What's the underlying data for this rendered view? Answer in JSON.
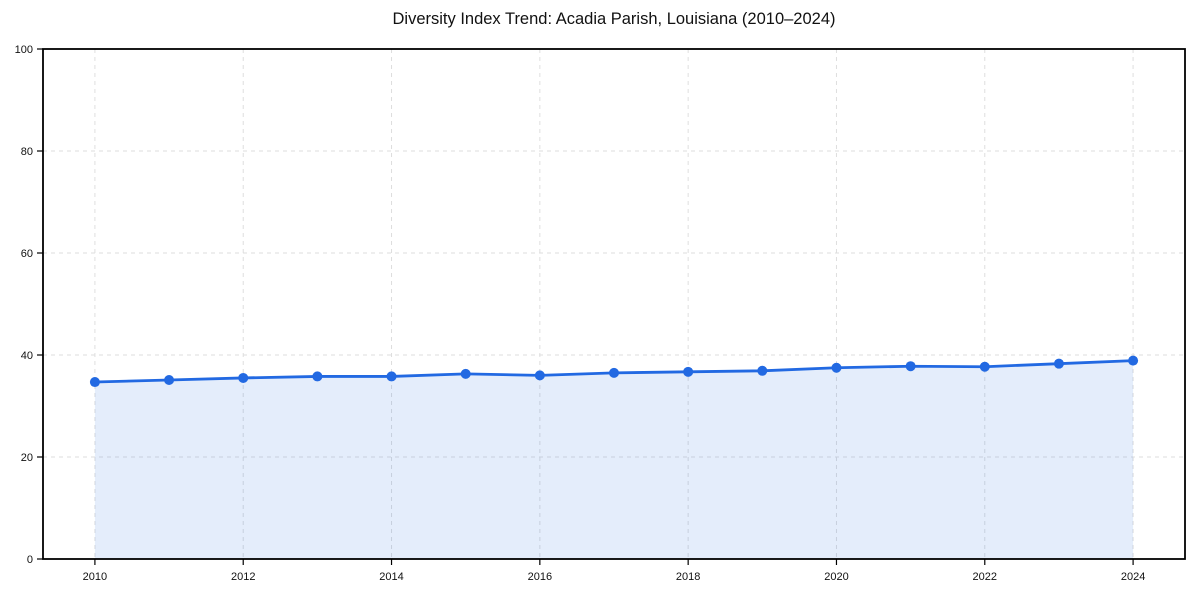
{
  "title": "Diversity Index Trend: Acadia Parish, Louisiana (2010–2024)",
  "chart_data": {
    "type": "line",
    "title": "Diversity Index Trend: Acadia Parish, Louisiana (2010–2024)",
    "xlabel": "",
    "ylabel": "",
    "x": [
      2010,
      2011,
      2012,
      2013,
      2014,
      2015,
      2016,
      2017,
      2018,
      2019,
      2020,
      2021,
      2022,
      2023,
      2024
    ],
    "series": [
      {
        "name": "Diversity Index",
        "values": [
          34.7,
          35.1,
          35.5,
          35.8,
          35.8,
          36.3,
          36.0,
          36.5,
          36.7,
          36.9,
          37.5,
          37.8,
          37.7,
          38.3,
          38.9
        ]
      }
    ],
    "x_ticks": [
      2010,
      2012,
      2014,
      2016,
      2018,
      2020,
      2022,
      2024
    ],
    "y_ticks": [
      0,
      20,
      40,
      60,
      80,
      100
    ],
    "xlim": [
      2009.3,
      2024.7
    ],
    "ylim": [
      0,
      100
    ],
    "grid": true,
    "legend": "none",
    "area_fill": true,
    "colors": {
      "line": "#2269e2",
      "marker": "#2269e2",
      "fill": "#2269e2",
      "grid": "#dedede",
      "spine": "#000000",
      "text": "#111111",
      "background": "#ffffff"
    },
    "fill_opacity": 0.12
  }
}
